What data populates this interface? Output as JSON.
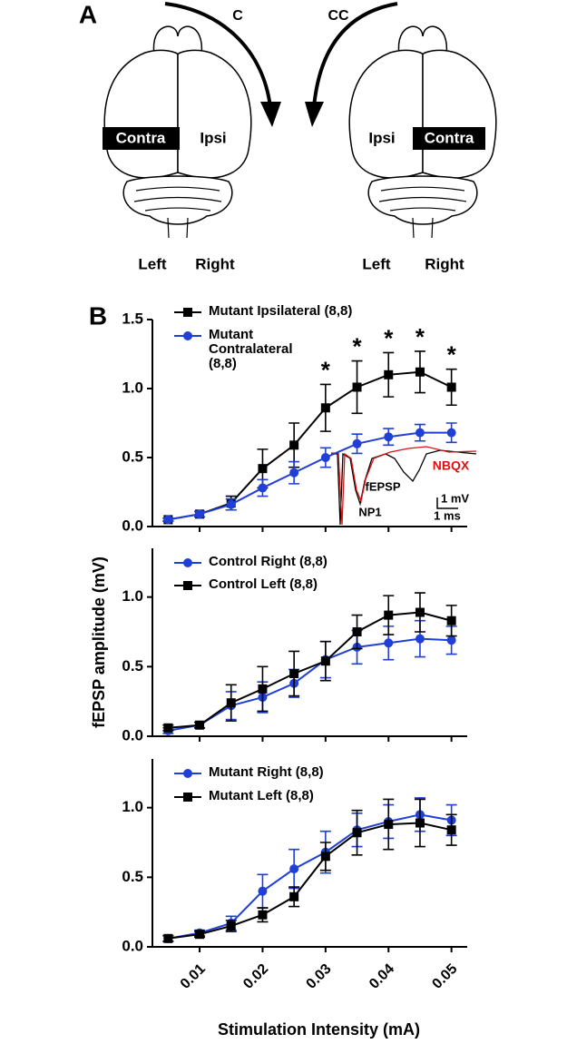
{
  "panel_a": {
    "label": "A",
    "left_brain": {
      "arrow": "C",
      "shaded": "Contra",
      "other": "Ipsi",
      "side_left": "Left",
      "side_right": "Right"
    },
    "right_brain": {
      "arrow": "CC",
      "shaded": "Contra",
      "other": "Ipsi",
      "side_left": "Left",
      "side_right": "Right"
    }
  },
  "panel_b_label": "B",
  "chart_data": [
    {
      "type": "line",
      "xlim": [
        0.0025,
        0.0525
      ],
      "xticks": [
        0.01,
        0.02,
        0.03,
        0.04,
        0.05
      ],
      "ylim": [
        0,
        1.5
      ],
      "yticks": [
        {
          "value": 0,
          "label": "0.0"
        },
        0.5,
        {
          "value": 1,
          "label": "1.0"
        },
        1.5
      ],
      "x": [
        0.005,
        0.01,
        0.015,
        0.02,
        0.025,
        0.03,
        0.035,
        0.04,
        0.045,
        0.05
      ],
      "series": [
        {
          "name": "Mutant Ipsilateral (8,8)",
          "color": "#000000",
          "marker": "square",
          "values": [
            0.05,
            0.09,
            0.17,
            0.42,
            0.59,
            0.86,
            1.01,
            1.1,
            1.12,
            1.01
          ],
          "errors": [
            0.01,
            0.02,
            0.05,
            0.14,
            0.16,
            0.17,
            0.19,
            0.16,
            0.15,
            0.13
          ]
        },
        {
          "name": "Mutant Contralateral (8,8)",
          "color": "#1f3fd6",
          "marker": "circle",
          "values": [
            0.05,
            0.09,
            0.16,
            0.28,
            0.39,
            0.5,
            0.6,
            0.65,
            0.68,
            0.68
          ],
          "errors": [
            0.01,
            0.02,
            0.04,
            0.06,
            0.08,
            0.07,
            0.07,
            0.06,
            0.06,
            0.07
          ]
        }
      ],
      "significance": {
        "label": "*",
        "x": [
          0.03,
          0.035,
          0.04,
          0.045,
          0.05
        ]
      },
      "inset_labels": {
        "treated": "NBQX",
        "response": "fEPSP",
        "volley": "NP1",
        "scale_v": "1 mV",
        "scale_t": "1 ms"
      }
    },
    {
      "type": "line",
      "xlim": [
        0.0025,
        0.0525
      ],
      "xticks": [
        0.01,
        0.02,
        0.03,
        0.04,
        0.05
      ],
      "ylim": [
        0,
        1.35
      ],
      "yticks": [
        {
          "value": 0,
          "label": "0.0"
        },
        0.5,
        {
          "value": 1,
          "label": "1.0"
        }
      ],
      "ylabel": "fEPSP amplitude (mV)",
      "x": [
        0.005,
        0.01,
        0.015,
        0.02,
        0.025,
        0.03,
        0.035,
        0.04,
        0.045,
        0.05
      ],
      "series": [
        {
          "name": "Control Right (8,8)",
          "color": "#1f3fd6",
          "marker": "circle",
          "values": [
            0.04,
            0.08,
            0.22,
            0.28,
            0.38,
            0.55,
            0.64,
            0.67,
            0.7,
            0.69
          ],
          "errors": [
            0.02,
            0.02,
            0.1,
            0.11,
            0.1,
            0.13,
            0.12,
            0.12,
            0.13,
            0.1
          ]
        },
        {
          "name": "Control Left (8,8)",
          "color": "#000000",
          "marker": "square",
          "values": [
            0.06,
            0.08,
            0.24,
            0.34,
            0.45,
            0.54,
            0.75,
            0.87,
            0.89,
            0.83
          ],
          "errors": [
            0.02,
            0.02,
            0.13,
            0.16,
            0.16,
            0.14,
            0.12,
            0.14,
            0.14,
            0.11
          ]
        }
      ]
    },
    {
      "type": "line",
      "xlim": [
        0.0025,
        0.0525
      ],
      "xticks": [
        0.01,
        0.02,
        0.03,
        0.04,
        0.05
      ],
      "ylim": [
        0,
        1.35
      ],
      "yticks": [
        {
          "value": 0,
          "label": "0.0"
        },
        0.5,
        {
          "value": 1,
          "label": "1.0"
        }
      ],
      "xlabel": "Stimulation Intensity (mA)",
      "x": [
        0.005,
        0.01,
        0.015,
        0.02,
        0.025,
        0.03,
        0.035,
        0.04,
        0.045,
        0.05
      ],
      "series": [
        {
          "name": "Mutant Right (8,8)",
          "color": "#1f3fd6",
          "marker": "circle",
          "values": [
            0.06,
            0.1,
            0.17,
            0.4,
            0.56,
            0.68,
            0.84,
            0.9,
            0.95,
            0.91
          ],
          "errors": [
            0.02,
            0.02,
            0.05,
            0.12,
            0.14,
            0.15,
            0.12,
            0.12,
            0.12,
            0.11
          ]
        },
        {
          "name": "Mutant Left (8,8)",
          "color": "#000000",
          "marker": "square",
          "values": [
            0.06,
            0.09,
            0.15,
            0.23,
            0.36,
            0.65,
            0.82,
            0.88,
            0.89,
            0.84
          ],
          "errors": [
            0.02,
            0.02,
            0.04,
            0.05,
            0.07,
            0.1,
            0.16,
            0.18,
            0.17,
            0.11
          ]
        }
      ]
    }
  ]
}
